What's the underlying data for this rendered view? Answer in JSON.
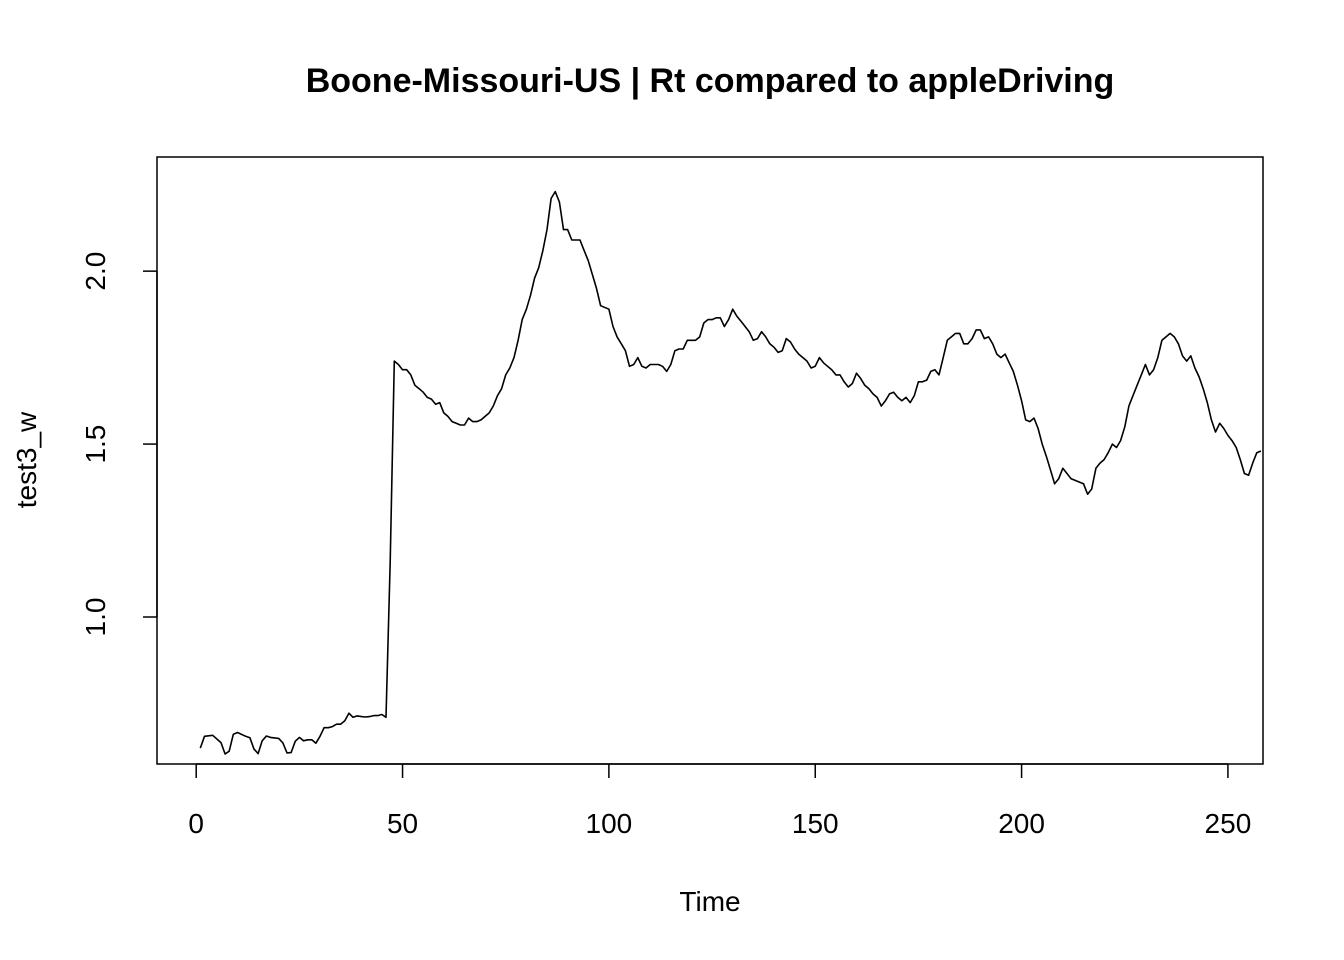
{
  "chart_data": {
    "type": "line",
    "title": "Boone-Missouri-US | Rt compared to appleDriving",
    "xlabel": "Time",
    "ylabel": "test3_w",
    "xlim": [
      -9.5,
      258.5
    ],
    "ylim": [
      0.575,
      2.33
    ],
    "x_ticks": [
      0,
      50,
      100,
      150,
      200,
      250
    ],
    "y_ticks": [
      1.0,
      1.5,
      2.0
    ],
    "x_tick_labels": [
      "0",
      "50",
      "100",
      "150",
      "200",
      "250"
    ],
    "y_tick_labels": [
      "1.0",
      "1.5",
      "2.0"
    ],
    "grid": false,
    "legend": "none",
    "line_color": "#000000",
    "points": [
      [
        1,
        0.621
      ],
      [
        2,
        0.655
      ],
      [
        4,
        0.658
      ],
      [
        6,
        0.637
      ],
      [
        7,
        0.604
      ],
      [
        8,
        0.612
      ],
      [
        9,
        0.661
      ],
      [
        10,
        0.666
      ],
      [
        12,
        0.655
      ],
      [
        13,
        0.651
      ],
      [
        14,
        0.618
      ],
      [
        15,
        0.605
      ],
      [
        16,
        0.642
      ],
      [
        17,
        0.656
      ],
      [
        18,
        0.652
      ],
      [
        20,
        0.649
      ],
      [
        21,
        0.636
      ],
      [
        22,
        0.607
      ],
      [
        23,
        0.608
      ],
      [
        24,
        0.641
      ],
      [
        25,
        0.652
      ],
      [
        26,
        0.642
      ],
      [
        27,
        0.645
      ],
      [
        28,
        0.645
      ],
      [
        29,
        0.635
      ],
      [
        30,
        0.655
      ],
      [
        31,
        0.68
      ],
      [
        32,
        0.68
      ],
      [
        33,
        0.683
      ],
      [
        34,
        0.69
      ],
      [
        35,
        0.69
      ],
      [
        36,
        0.7
      ],
      [
        37,
        0.722
      ],
      [
        38,
        0.71
      ],
      [
        39,
        0.714
      ],
      [
        40,
        0.712
      ],
      [
        41,
        0.711
      ],
      [
        42,
        0.712
      ],
      [
        43,
        0.715
      ],
      [
        44,
        0.715
      ],
      [
        45,
        0.718
      ],
      [
        46,
        0.71
      ],
      [
        47,
        1.16
      ],
      [
        48,
        1.74
      ],
      [
        49,
        1.73
      ],
      [
        50,
        1.715
      ],
      [
        51,
        1.715
      ],
      [
        52,
        1.7
      ],
      [
        53,
        1.67
      ],
      [
        54,
        1.66
      ],
      [
        55,
        1.65
      ],
      [
        56,
        1.635
      ],
      [
        57,
        1.63
      ],
      [
        58,
        1.615
      ],
      [
        59,
        1.62
      ],
      [
        60,
        1.59
      ],
      [
        61,
        1.58
      ],
      [
        62,
        1.565
      ],
      [
        63,
        1.56
      ],
      [
        64,
        1.555
      ],
      [
        65,
        1.555
      ],
      [
        66,
        1.575
      ],
      [
        67,
        1.565
      ],
      [
        68,
        1.565
      ],
      [
        69,
        1.57
      ],
      [
        70,
        1.58
      ],
      [
        71,
        1.59
      ],
      [
        72,
        1.61
      ],
      [
        73,
        1.64
      ],
      [
        74,
        1.66
      ],
      [
        75,
        1.7
      ],
      [
        76,
        1.72
      ],
      [
        77,
        1.75
      ],
      [
        78,
        1.8
      ],
      [
        79,
        1.86
      ],
      [
        80,
        1.89
      ],
      [
        81,
        1.93
      ],
      [
        82,
        1.98
      ],
      [
        83,
        2.01
      ],
      [
        84,
        2.06
      ],
      [
        85,
        2.12
      ],
      [
        86,
        2.21
      ],
      [
        87,
        2.23
      ],
      [
        88,
        2.2
      ],
      [
        89,
        2.12
      ],
      [
        90,
        2.12
      ],
      [
        91,
        2.09
      ],
      [
        93,
        2.09
      ],
      [
        94,
        2.06
      ],
      [
        95,
        2.03
      ],
      [
        96,
        1.99
      ],
      [
        97,
        1.95
      ],
      [
        98,
        1.9
      ],
      [
        100,
        1.89
      ],
      [
        101,
        1.84
      ],
      [
        102,
        1.81
      ],
      [
        103,
        1.79
      ],
      [
        104,
        1.77
      ],
      [
        105,
        1.725
      ],
      [
        106,
        1.73
      ],
      [
        107,
        1.75
      ],
      [
        108,
        1.725
      ],
      [
        109,
        1.72
      ],
      [
        110,
        1.73
      ],
      [
        111,
        1.73
      ],
      [
        112,
        1.73
      ],
      [
        113,
        1.725
      ],
      [
        114,
        1.71
      ],
      [
        115,
        1.73
      ],
      [
        116,
        1.77
      ],
      [
        117,
        1.775
      ],
      [
        118,
        1.775
      ],
      [
        119,
        1.8
      ],
      [
        121,
        1.8
      ],
      [
        122,
        1.81
      ],
      [
        123,
        1.85
      ],
      [
        124,
        1.86
      ],
      [
        125,
        1.86
      ],
      [
        126,
        1.865
      ],
      [
        127,
        1.865
      ],
      [
        128,
        1.84
      ],
      [
        129,
        1.86
      ],
      [
        130,
        1.89
      ],
      [
        131,
        1.87
      ],
      [
        132,
        1.855
      ],
      [
        133,
        1.84
      ],
      [
        134,
        1.825
      ],
      [
        135,
        1.8
      ],
      [
        136,
        1.805
      ],
      [
        137,
        1.825
      ],
      [
        138,
        1.81
      ],
      [
        139,
        1.79
      ],
      [
        140,
        1.78
      ],
      [
        141,
        1.765
      ],
      [
        142,
        1.77
      ],
      [
        143,
        1.805
      ],
      [
        144,
        1.795
      ],
      [
        145,
        1.775
      ],
      [
        146,
        1.76
      ],
      [
        147,
        1.75
      ],
      [
        148,
        1.74
      ],
      [
        149,
        1.72
      ],
      [
        150,
        1.725
      ],
      [
        151,
        1.75
      ],
      [
        152,
        1.735
      ],
      [
        153,
        1.725
      ],
      [
        154,
        1.715
      ],
      [
        155,
        1.7
      ],
      [
        156,
        1.7
      ],
      [
        157,
        1.68
      ],
      [
        158,
        1.665
      ],
      [
        159,
        1.675
      ],
      [
        160,
        1.705
      ],
      [
        161,
        1.69
      ],
      [
        162,
        1.67
      ],
      [
        163,
        1.66
      ],
      [
        164,
        1.645
      ],
      [
        165,
        1.635
      ],
      [
        166,
        1.61
      ],
      [
        167,
        1.625
      ],
      [
        168,
        1.645
      ],
      [
        169,
        1.65
      ],
      [
        170,
        1.635
      ],
      [
        171,
        1.625
      ],
      [
        172,
        1.635
      ],
      [
        173,
        1.62
      ],
      [
        174,
        1.64
      ],
      [
        175,
        1.68
      ],
      [
        176,
        1.68
      ],
      [
        177,
        1.685
      ],
      [
        178,
        1.71
      ],
      [
        179,
        1.715
      ],
      [
        180,
        1.7
      ],
      [
        181,
        1.75
      ],
      [
        182,
        1.8
      ],
      [
        183,
        1.81
      ],
      [
        184,
        1.82
      ],
      [
        185,
        1.82
      ],
      [
        186,
        1.79
      ],
      [
        187,
        1.79
      ],
      [
        188,
        1.805
      ],
      [
        189,
        1.83
      ],
      [
        190,
        1.83
      ],
      [
        191,
        1.805
      ],
      [
        192,
        1.81
      ],
      [
        193,
        1.79
      ],
      [
        194,
        1.76
      ],
      [
        195,
        1.75
      ],
      [
        196,
        1.76
      ],
      [
        197,
        1.735
      ],
      [
        198,
        1.71
      ],
      [
        199,
        1.67
      ],
      [
        200,
        1.625
      ],
      [
        201,
        1.57
      ],
      [
        202,
        1.565
      ],
      [
        203,
        1.575
      ],
      [
        204,
        1.545
      ],
      [
        205,
        1.5
      ],
      [
        206,
        1.465
      ],
      [
        207,
        1.425
      ],
      [
        208,
        1.385
      ],
      [
        209,
        1.4
      ],
      [
        210,
        1.43
      ],
      [
        211,
        1.415
      ],
      [
        212,
        1.4
      ],
      [
        213,
        1.395
      ],
      [
        214,
        1.39
      ],
      [
        215,
        1.385
      ],
      [
        216,
        1.355
      ],
      [
        217,
        1.37
      ],
      [
        218,
        1.43
      ],
      [
        219,
        1.445
      ],
      [
        220,
        1.455
      ],
      [
        221,
        1.475
      ],
      [
        222,
        1.5
      ],
      [
        223,
        1.49
      ],
      [
        224,
        1.51
      ],
      [
        225,
        1.55
      ],
      [
        226,
        1.61
      ],
      [
        227,
        1.64
      ],
      [
        228,
        1.67
      ],
      [
        229,
        1.7
      ],
      [
        230,
        1.73
      ],
      [
        231,
        1.7
      ],
      [
        232,
        1.715
      ],
      [
        233,
        1.75
      ],
      [
        234,
        1.8
      ],
      [
        235,
        1.81
      ],
      [
        236,
        1.82
      ],
      [
        237,
        1.81
      ],
      [
        238,
        1.79
      ],
      [
        239,
        1.755
      ],
      [
        240,
        1.74
      ],
      [
        241,
        1.755
      ],
      [
        242,
        1.72
      ],
      [
        243,
        1.695
      ],
      [
        244,
        1.66
      ],
      [
        245,
        1.62
      ],
      [
        246,
        1.57
      ],
      [
        247,
        1.535
      ],
      [
        248,
        1.56
      ],
      [
        249,
        1.545
      ],
      [
        250,
        1.525
      ],
      [
        251,
        1.51
      ],
      [
        252,
        1.49
      ],
      [
        253,
        1.455
      ],
      [
        254,
        1.415
      ],
      [
        255,
        1.41
      ],
      [
        256,
        1.445
      ],
      [
        257,
        1.475
      ],
      [
        258,
        1.48
      ]
    ]
  }
}
